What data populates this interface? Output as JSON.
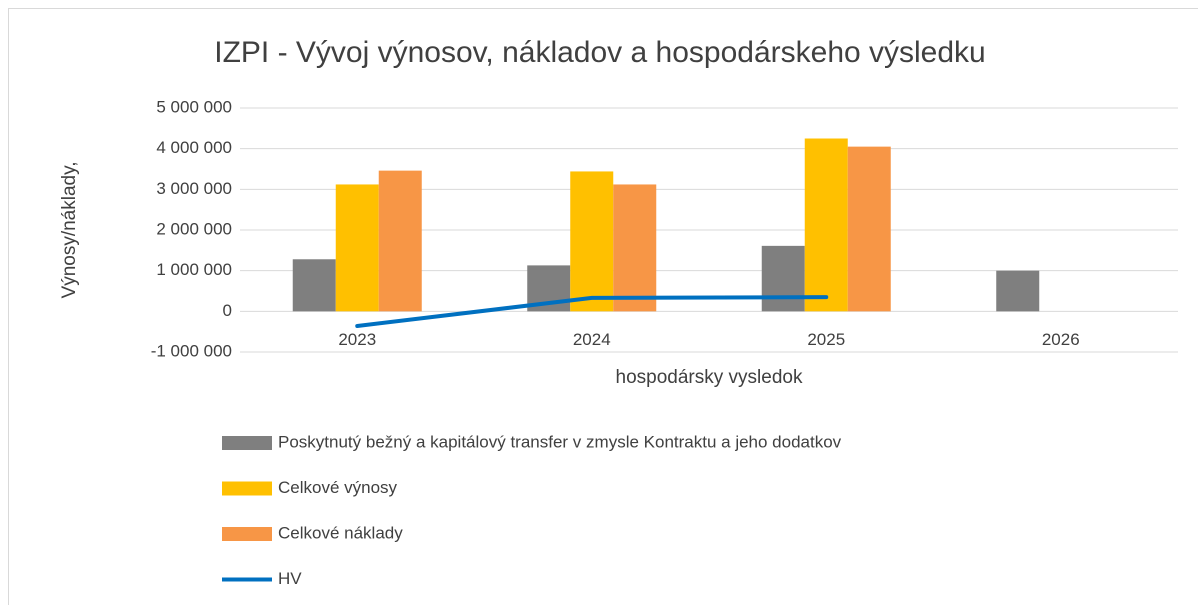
{
  "chart_data": {
    "type": "bar",
    "title": "IZPI - Vývoj výnosov, nákladov a hospodárskeho výsledku",
    "y_label": "Výnosy/náklady,",
    "x_label": "hospodársky vysledok",
    "categories": [
      "2023",
      "2024",
      "2025",
      "2026"
    ],
    "series": [
      {
        "name": "Poskytnutý bežný a kapitálový transfer v zmysle Kontraktu a jeho dodatkov",
        "color": "#7f7f7f",
        "values": [
          1280000,
          1130000,
          1610000,
          1000000
        ]
      },
      {
        "name": "Celkové výnosy",
        "color": "#ffc000",
        "values": [
          3120000,
          3440000,
          4250000,
          null
        ]
      },
      {
        "name": "Celkové náklady",
        "color": "#f79646",
        "values": [
          3460000,
          3120000,
          4050000,
          null
        ]
      },
      {
        "name": "HV",
        "color": "#0070c0",
        "type": "line",
        "values": [
          -360000,
          330000,
          350000,
          null
        ]
      }
    ],
    "ylim": [
      -1000000,
      5000000
    ],
    "yticks": [
      {
        "value": -1000000,
        "label": "-1 000 000"
      },
      0,
      {
        "value": 1000000,
        "label": "1 000 000"
      },
      {
        "value": 2000000,
        "label": "2 000 000"
      },
      {
        "value": 3000000,
        "label": "3 000 000"
      },
      {
        "value": 4000000,
        "label": "4 000 000"
      },
      {
        "value": 5000000,
        "label": "5 000 000"
      }
    ],
    "grid": true,
    "legend": "bottom"
  }
}
